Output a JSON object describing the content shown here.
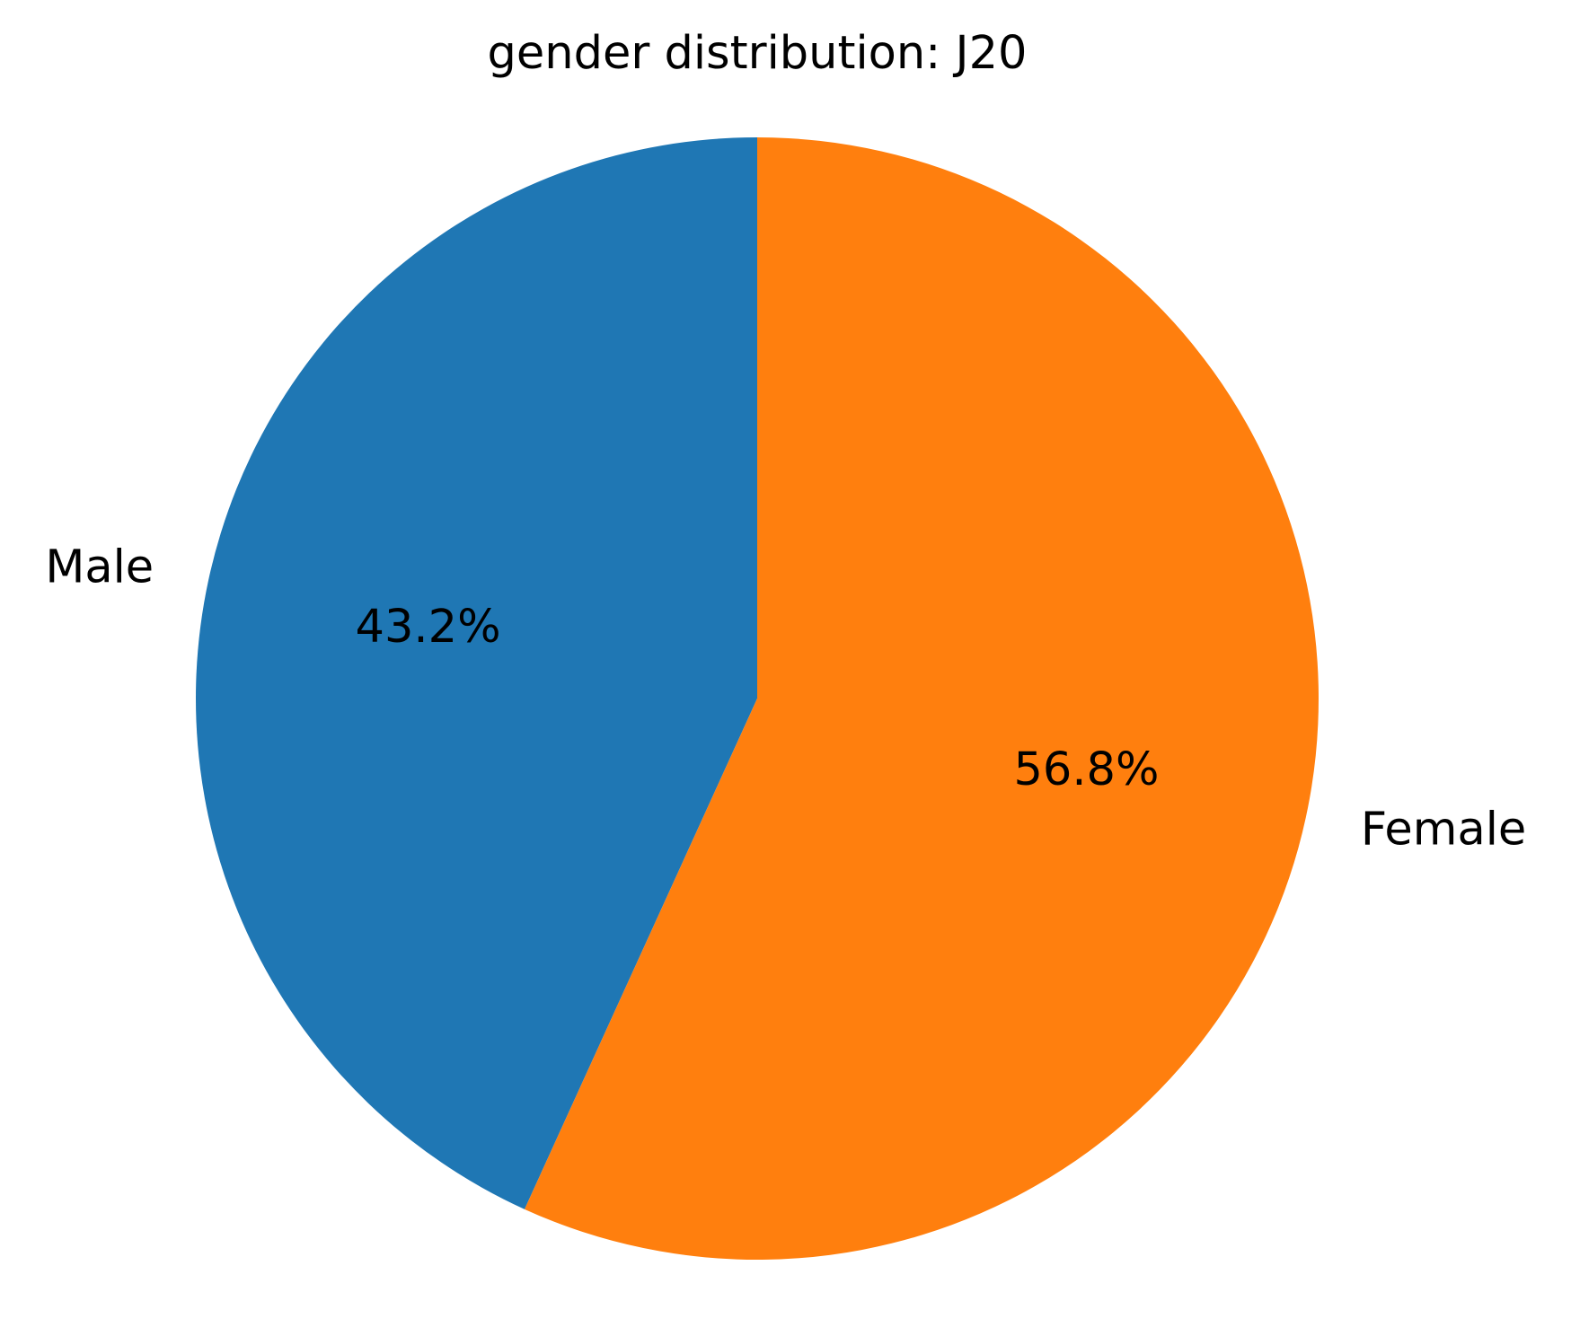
{
  "chart_data": {
    "type": "pie",
    "title": "gender distribution: J20",
    "start_angle_deg": 90,
    "direction": "counterclockwise",
    "slices": [
      {
        "label": "Male",
        "value": 43.2,
        "pct_label": "43.2%",
        "color": "#1f77b4"
      },
      {
        "label": "Female",
        "value": 56.8,
        "pct_label": "56.8%",
        "color": "#ff7f0e"
      }
    ]
  }
}
